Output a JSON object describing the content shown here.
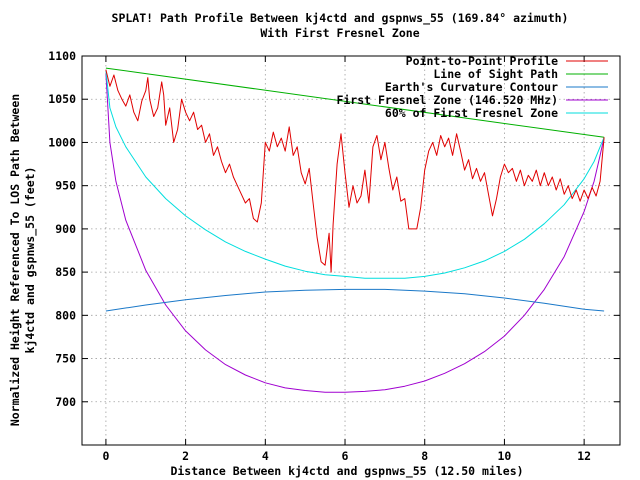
{
  "chart_data": {
    "type": "line",
    "title": "SPLAT! Path Profile Between kj4ctd and gspnws_55 (169.84° azimuth)",
    "subtitle": "With First Fresnel Zone",
    "xlabel": "Distance Between kj4ctd and gspnws_55 (12.50 miles)",
    "ylabel_line1": "Normalized Height Referenced To LOS Path Between",
    "ylabel_line2": "kj4ctd and gspnws_55 (feet)",
    "xlim": [
      -0.6,
      12.9
    ],
    "ylim": [
      650,
      1100
    ],
    "xticks": [
      0,
      2,
      4,
      6,
      8,
      10,
      12
    ],
    "yticks": [
      700,
      750,
      800,
      850,
      900,
      950,
      1000,
      1050,
      1100
    ],
    "grid": true,
    "legend_position": "top-right",
    "series": [
      {
        "name": "Point-to-Point Profile",
        "color": "#e00000",
        "points": [
          [
            0.0,
            1084
          ],
          [
            0.1,
            1065
          ],
          [
            0.2,
            1078
          ],
          [
            0.3,
            1060
          ],
          [
            0.4,
            1050
          ],
          [
            0.5,
            1042
          ],
          [
            0.6,
            1055
          ],
          [
            0.7,
            1035
          ],
          [
            0.8,
            1025
          ],
          [
            0.9,
            1048
          ],
          [
            1.0,
            1060
          ],
          [
            1.05,
            1075
          ],
          [
            1.1,
            1050
          ],
          [
            1.2,
            1030
          ],
          [
            1.3,
            1040
          ],
          [
            1.4,
            1070
          ],
          [
            1.45,
            1055
          ],
          [
            1.5,
            1020
          ],
          [
            1.6,
            1040
          ],
          [
            1.7,
            1000
          ],
          [
            1.8,
            1015
          ],
          [
            1.9,
            1050
          ],
          [
            2.0,
            1035
          ],
          [
            2.1,
            1025
          ],
          [
            2.2,
            1035
          ],
          [
            2.3,
            1015
          ],
          [
            2.4,
            1020
          ],
          [
            2.5,
            1000
          ],
          [
            2.6,
            1010
          ],
          [
            2.7,
            985
          ],
          [
            2.8,
            995
          ],
          [
            2.9,
            978
          ],
          [
            3.0,
            965
          ],
          [
            3.1,
            975
          ],
          [
            3.2,
            960
          ],
          [
            3.3,
            950
          ],
          [
            3.4,
            940
          ],
          [
            3.5,
            930
          ],
          [
            3.6,
            935
          ],
          [
            3.7,
            912
          ],
          [
            3.8,
            908
          ],
          [
            3.9,
            930
          ],
          [
            4.0,
            1000
          ],
          [
            4.1,
            990
          ],
          [
            4.2,
            1012
          ],
          [
            4.3,
            995
          ],
          [
            4.4,
            1005
          ],
          [
            4.5,
            990
          ],
          [
            4.6,
            1018
          ],
          [
            4.7,
            985
          ],
          [
            4.8,
            995
          ],
          [
            4.9,
            965
          ],
          [
            5.0,
            952
          ],
          [
            5.1,
            970
          ],
          [
            5.2,
            930
          ],
          [
            5.3,
            890
          ],
          [
            5.4,
            862
          ],
          [
            5.5,
            858
          ],
          [
            5.6,
            895
          ],
          [
            5.65,
            850
          ],
          [
            5.7,
            905
          ],
          [
            5.8,
            975
          ],
          [
            5.9,
            1010
          ],
          [
            6.0,
            965
          ],
          [
            6.1,
            925
          ],
          [
            6.2,
            950
          ],
          [
            6.3,
            930
          ],
          [
            6.4,
            938
          ],
          [
            6.5,
            968
          ],
          [
            6.6,
            930
          ],
          [
            6.7,
            995
          ],
          [
            6.8,
            1008
          ],
          [
            6.9,
            980
          ],
          [
            7.0,
            1000
          ],
          [
            7.1,
            970
          ],
          [
            7.2,
            945
          ],
          [
            7.3,
            960
          ],
          [
            7.4,
            932
          ],
          [
            7.5,
            935
          ],
          [
            7.6,
            900
          ],
          [
            7.7,
            900
          ],
          [
            7.8,
            900
          ],
          [
            7.9,
            925
          ],
          [
            8.0,
            968
          ],
          [
            8.1,
            990
          ],
          [
            8.2,
            1000
          ],
          [
            8.3,
            985
          ],
          [
            8.4,
            1008
          ],
          [
            8.5,
            995
          ],
          [
            8.6,
            1005
          ],
          [
            8.7,
            985
          ],
          [
            8.8,
            1010
          ],
          [
            8.9,
            990
          ],
          [
            9.0,
            968
          ],
          [
            9.1,
            980
          ],
          [
            9.2,
            958
          ],
          [
            9.3,
            970
          ],
          [
            9.4,
            955
          ],
          [
            9.5,
            965
          ],
          [
            9.6,
            940
          ],
          [
            9.7,
            915
          ],
          [
            9.8,
            935
          ],
          [
            9.9,
            960
          ],
          [
            10.0,
            975
          ],
          [
            10.1,
            965
          ],
          [
            10.2,
            970
          ],
          [
            10.3,
            955
          ],
          [
            10.4,
            968
          ],
          [
            10.5,
            950
          ],
          [
            10.6,
            962
          ],
          [
            10.7,
            955
          ],
          [
            10.8,
            968
          ],
          [
            10.9,
            950
          ],
          [
            11.0,
            965
          ],
          [
            11.1,
            950
          ],
          [
            11.2,
            960
          ],
          [
            11.3,
            945
          ],
          [
            11.4,
            958
          ],
          [
            11.5,
            940
          ],
          [
            11.6,
            950
          ],
          [
            11.7,
            935
          ],
          [
            11.8,
            945
          ],
          [
            11.9,
            932
          ],
          [
            12.0,
            945
          ],
          [
            12.1,
            935
          ],
          [
            12.2,
            948
          ],
          [
            12.3,
            938
          ],
          [
            12.4,
            955
          ],
          [
            12.5,
            1006
          ]
        ]
      },
      {
        "name": "Line of Sight Path",
        "color": "#00b000",
        "points": [
          [
            0.0,
            1086
          ],
          [
            12.5,
            1006
          ]
        ]
      },
      {
        "name": "Earth's Curvature Contour",
        "color": "#1a78c8",
        "points": [
          [
            0.0,
            805
          ],
          [
            1.0,
            812
          ],
          [
            2.0,
            818
          ],
          [
            3.0,
            823
          ],
          [
            4.0,
            827
          ],
          [
            5.0,
            829
          ],
          [
            6.0,
            830
          ],
          [
            7.0,
            830
          ],
          [
            8.0,
            828
          ],
          [
            9.0,
            825
          ],
          [
            10.0,
            820
          ],
          [
            11.0,
            814
          ],
          [
            12.0,
            807
          ],
          [
            12.5,
            805
          ]
        ]
      },
      {
        "name": "First Fresnel Zone (146.520 MHz)",
        "color": "#a000d0",
        "points": [
          [
            0.0,
            1080
          ],
          [
            0.1,
            1000
          ],
          [
            0.25,
            955
          ],
          [
            0.5,
            910
          ],
          [
            1.0,
            852
          ],
          [
            1.5,
            812
          ],
          [
            2.0,
            782
          ],
          [
            2.5,
            760
          ],
          [
            3.0,
            743
          ],
          [
            3.5,
            731
          ],
          [
            4.0,
            722
          ],
          [
            4.5,
            716
          ],
          [
            5.0,
            713
          ],
          [
            5.5,
            711
          ],
          [
            6.0,
            711
          ],
          [
            6.5,
            712
          ],
          [
            7.0,
            714
          ],
          [
            7.5,
            718
          ],
          [
            8.0,
            724
          ],
          [
            8.5,
            733
          ],
          [
            9.0,
            744
          ],
          [
            9.5,
            758
          ],
          [
            10.0,
            776
          ],
          [
            10.5,
            800
          ],
          [
            11.0,
            830
          ],
          [
            11.5,
            868
          ],
          [
            12.0,
            920
          ],
          [
            12.25,
            955
          ],
          [
            12.4,
            985
          ],
          [
            12.5,
            1006
          ]
        ]
      },
      {
        "name": "60% of First Fresnel Zone",
        "color": "#00dede",
        "points": [
          [
            0.0,
            1083
          ],
          [
            0.1,
            1040
          ],
          [
            0.25,
            1018
          ],
          [
            0.5,
            995
          ],
          [
            1.0,
            960
          ],
          [
            1.5,
            935
          ],
          [
            2.0,
            915
          ],
          [
            2.5,
            899
          ],
          [
            3.0,
            885
          ],
          [
            3.5,
            874
          ],
          [
            4.0,
            865
          ],
          [
            4.5,
            857
          ],
          [
            5.0,
            851
          ],
          [
            5.5,
            847
          ],
          [
            6.0,
            845
          ],
          [
            6.5,
            843
          ],
          [
            7.0,
            843
          ],
          [
            7.5,
            843
          ],
          [
            8.0,
            845
          ],
          [
            8.5,
            849
          ],
          [
            9.0,
            855
          ],
          [
            9.5,
            863
          ],
          [
            10.0,
            874
          ],
          [
            10.5,
            888
          ],
          [
            11.0,
            906
          ],
          [
            11.5,
            928
          ],
          [
            12.0,
            958
          ],
          [
            12.25,
            978
          ],
          [
            12.4,
            995
          ],
          [
            12.5,
            1006
          ]
        ]
      }
    ]
  }
}
